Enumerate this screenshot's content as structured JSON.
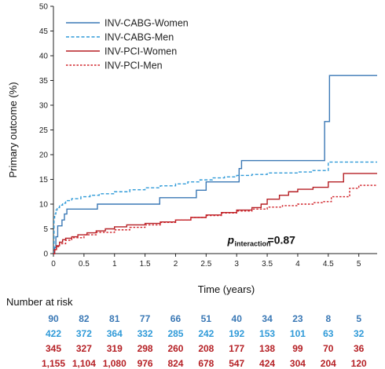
{
  "chart_data": {
    "type": "line",
    "title": "",
    "xlabel": "Time (years)",
    "ylabel": "Primary outcome (%)",
    "xlim": [
      0,
      5.3
    ],
    "ylim": [
      0,
      50
    ],
    "x_ticks": [
      "0",
      "0.5",
      "1",
      "1.5",
      "2",
      "2.5",
      "3",
      "3.5",
      "4",
      "4.5",
      "5"
    ],
    "y_ticks": [
      "0",
      "5",
      "10",
      "15",
      "20",
      "25",
      "30",
      "35",
      "40",
      "45",
      "50"
    ],
    "legend_position": "top-left",
    "grid": false,
    "series": [
      {
        "name": "INV-CABG-Women",
        "color": "#3a78b5",
        "style": "solid",
        "x": [
          0,
          0.02,
          0.04,
          0.07,
          0.1,
          0.14,
          0.18,
          0.22,
          0.26,
          0.72,
          1.1,
          1.74,
          2.1,
          2.34,
          2.5,
          2.72,
          3.04,
          3.08,
          4.4,
          4.44,
          4.5,
          4.52,
          5.3
        ],
        "y": [
          0,
          1.2,
          3.4,
          5.6,
          5.6,
          6.8,
          8.0,
          9.0,
          9.0,
          10.0,
          10.0,
          11.3,
          11.3,
          12.8,
          14.5,
          14.5,
          17.2,
          18.8,
          18.8,
          26.7,
          26.7,
          36.0,
          36.0
        ]
      },
      {
        "name": "INV-CABG-Men",
        "color": "#2f9ad8",
        "style": "dashed",
        "x": [
          0,
          0.01,
          0.02,
          0.04,
          0.06,
          0.1,
          0.15,
          0.2,
          0.3,
          0.45,
          0.6,
          0.75,
          1.0,
          1.25,
          1.5,
          1.75,
          2.0,
          2.2,
          2.4,
          2.6,
          2.8,
          3.0,
          3.25,
          3.5,
          4.0,
          4.25,
          4.5,
          5.3
        ],
        "y": [
          0,
          7.2,
          8.0,
          8.8,
          9.3,
          9.8,
          10.2,
          10.7,
          11.1,
          11.5,
          11.8,
          12.1,
          12.5,
          12.9,
          13.3,
          13.7,
          14.1,
          14.5,
          14.9,
          15.3,
          15.5,
          15.8,
          16.0,
          16.3,
          16.5,
          16.8,
          18.5,
          18.5
        ]
      },
      {
        "name": "INV-PCI-Women",
        "color": "#b51f24",
        "style": "solid",
        "x": [
          0,
          0.02,
          0.05,
          0.1,
          0.15,
          0.2,
          0.3,
          0.4,
          0.55,
          0.7,
          0.85,
          1.0,
          1.2,
          1.5,
          1.75,
          2.0,
          2.25,
          2.5,
          2.75,
          3.0,
          3.25,
          3.4,
          3.5,
          3.7,
          3.85,
          4.0,
          4.25,
          4.4,
          4.5,
          4.6,
          4.75,
          5.3
        ],
        "y": [
          0,
          0.8,
          1.6,
          2.3,
          2.8,
          3.1,
          3.4,
          3.8,
          4.2,
          4.6,
          5.0,
          5.4,
          5.8,
          6.1,
          6.4,
          6.8,
          7.3,
          7.8,
          8.3,
          8.8,
          9.3,
          10.0,
          11.0,
          11.8,
          12.5,
          13.0,
          13.4,
          13.4,
          14.5,
          14.5,
          16.2,
          16.2
        ]
      },
      {
        "name": "INV-PCI-Men",
        "color": "#d0232a",
        "style": "dotted",
        "x": [
          0,
          0.02,
          0.05,
          0.1,
          0.2,
          0.3,
          0.5,
          0.7,
          1.0,
          1.25,
          1.5,
          1.75,
          2.0,
          2.25,
          2.5,
          2.75,
          3.0,
          3.25,
          3.5,
          3.75,
          4.0,
          4.25,
          4.4,
          4.55,
          4.65,
          4.85,
          5.0,
          5.3
        ],
        "y": [
          0,
          0.7,
          1.4,
          2.0,
          2.7,
          3.2,
          3.8,
          4.3,
          4.8,
          5.3,
          5.8,
          6.3,
          6.8,
          7.3,
          7.7,
          8.2,
          8.6,
          9.0,
          9.4,
          9.7,
          10.0,
          10.3,
          10.5,
          11.5,
          11.5,
          13.2,
          13.8,
          13.8
        ]
      }
    ],
    "annotation": {
      "p_symbol": "p",
      "p_subscript": "interaction",
      "p_value": "=0.87",
      "x": 2.85,
      "y": 2.0
    },
    "risk_table": {
      "title": "Number at risk",
      "times": [
        0,
        0.5,
        1,
        1.5,
        2,
        2.5,
        3,
        3.5,
        4,
        4.5,
        5
      ],
      "rows": [
        {
          "name": "INV-CABG-Women",
          "color": "#3a78b5",
          "values": [
            "90",
            "82",
            "81",
            "77",
            "66",
            "51",
            "40",
            "34",
            "23",
            "8",
            "5"
          ]
        },
        {
          "name": "INV-CABG-Men",
          "color": "#2f9ad8",
          "values": [
            "422",
            "372",
            "364",
            "332",
            "285",
            "242",
            "192",
            "153",
            "101",
            "63",
            "32"
          ]
        },
        {
          "name": "INV-PCI-Women",
          "color": "#b51f24",
          "values": [
            "345",
            "327",
            "319",
            "298",
            "260",
            "208",
            "177",
            "138",
            "99",
            "70",
            "36"
          ]
        },
        {
          "name": "INV-PCI-Men",
          "color": "#b51f24",
          "values": [
            "1,155",
            "1,104",
            "1,080",
            "976",
            "824",
            "678",
            "547",
            "424",
            "304",
            "204",
            "120"
          ]
        }
      ]
    }
  }
}
